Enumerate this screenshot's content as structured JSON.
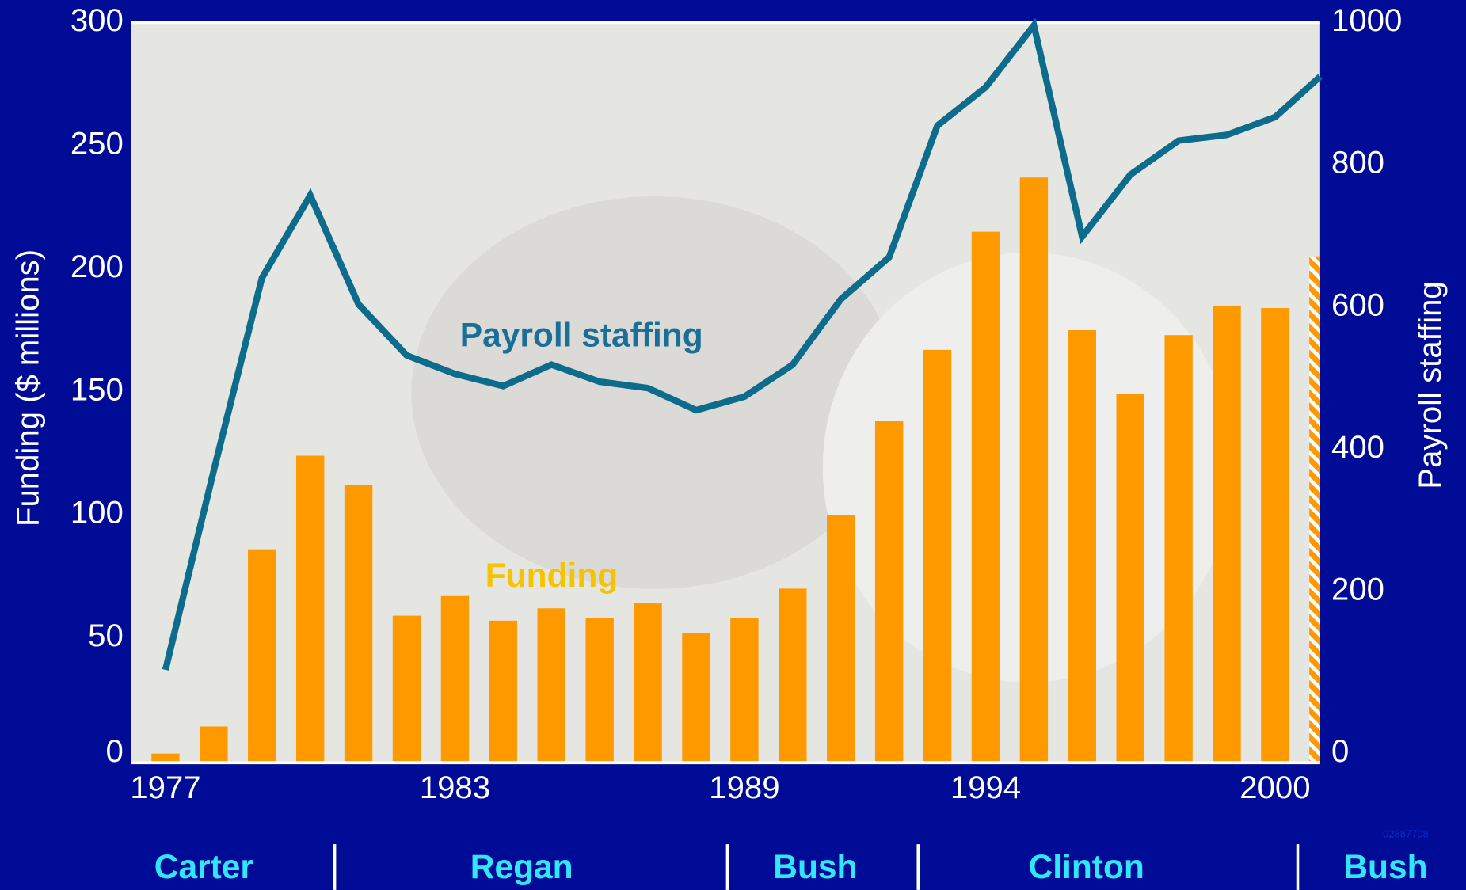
{
  "chart_data": {
    "type": "bar",
    "categories": [
      "1977",
      null,
      null,
      null,
      null,
      null,
      "1983",
      null,
      null,
      null,
      null,
      null,
      "1989",
      null,
      null,
      null,
      null,
      "1994",
      null,
      null,
      null,
      null,
      null,
      "2000",
      null
    ],
    "series": [
      {
        "name": "Funding",
        "type": "bar",
        "color": "#ff9900",
        "values": [
          3,
          14,
          86,
          124,
          112,
          59,
          67,
          57,
          62,
          58,
          64,
          52,
          58,
          70,
          100,
          138,
          167,
          215,
          237,
          175,
          149,
          173,
          185,
          184,
          205
        ]
      },
      {
        "name": "Payroll staffing",
        "type": "line",
        "axis": "y2",
        "color": "#0d6b8c",
        "values": [
          90,
          370,
          641,
          757,
          604,
          532,
          506,
          489,
          519,
          495,
          486,
          455,
          474,
          519,
          611,
          670,
          855,
          909,
          996,
          699,
          786,
          834,
          842,
          867,
          924
        ]
      }
    ],
    "y_label": "Funding ($ millions)",
    "y2_label": "Payroll staffing",
    "ylim": [
      0,
      300
    ],
    "yticks": [
      0,
      50,
      100,
      150,
      200,
      250,
      300
    ],
    "y2lim": [
      0,
      1000
    ],
    "y2ticks": [
      0,
      200,
      400,
      600,
      800,
      1000
    ],
    "presidents": [
      "Carter",
      "Regan",
      "Bush",
      "Clinton",
      "Bush"
    ],
    "watermark": "02887708"
  }
}
